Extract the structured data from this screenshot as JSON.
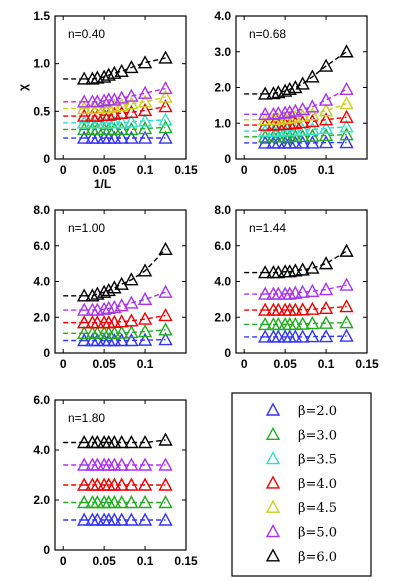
{
  "chart_data": {
    "type": "scatter",
    "x": [
      0.0256,
      0.0357,
      0.0417,
      0.05,
      0.0556,
      0.0625,
      0.0714,
      0.0833,
      0.1,
      0.125
    ],
    "legend": {
      "placement": "bottom-right",
      "entries": [
        {
          "beta": "β=2.0",
          "color": "#3333ff"
        },
        {
          "beta": "β=3.0",
          "color": "#22aa22"
        },
        {
          "beta": "β=3.5",
          "color": "#33ddcc"
        },
        {
          "beta": "β=4.0",
          "color": "#ee0000"
        },
        {
          "beta": "β=4.5",
          "color": "#cccc22"
        },
        {
          "beta": "β=5.0",
          "color": "#aa33ee"
        },
        {
          "beta": "β=6.0",
          "color": "#000000"
        }
      ]
    },
    "panels": [
      {
        "label": "n=0.40",
        "ylabel": "χ",
        "xlabel": "1/L",
        "xlim": [
          -0.01,
          0.15
        ],
        "ylim": [
          0,
          1.5
        ],
        "xticks": [
          "0",
          "0.05",
          "0.1",
          "0.15"
        ],
        "yticks": [
          "0",
          "0.5",
          "1.0",
          "1.5"
        ],
        "ytick_values": [
          0,
          0.5,
          1.0,
          1.5
        ],
        "series": [
          {
            "beta_index": 0,
            "y": [
              0.22,
              0.22,
              0.22,
              0.22,
              0.22,
              0.22,
              0.22,
              0.22,
              0.22,
              0.22
            ]
          },
          {
            "beta_index": 1,
            "y": [
              0.31,
              0.31,
              0.31,
              0.31,
              0.31,
              0.31,
              0.31,
              0.31,
              0.32,
              0.33
            ]
          },
          {
            "beta_index": 2,
            "y": [
              0.38,
              0.38,
              0.38,
              0.38,
              0.38,
              0.38,
              0.38,
              0.39,
              0.4,
              0.41
            ]
          },
          {
            "beta_index": 3,
            "y": [
              0.45,
              0.45,
              0.45,
              0.46,
              0.46,
              0.47,
              0.48,
              0.49,
              0.51,
              0.55
            ]
          },
          {
            "beta_index": 4,
            "y": [
              0.53,
              0.53,
              0.53,
              0.54,
              0.54,
              0.55,
              0.56,
              0.58,
              0.6,
              0.65
            ]
          },
          {
            "beta_index": 5,
            "y": [
              0.6,
              0.6,
              0.6,
              0.61,
              0.62,
              0.62,
              0.64,
              0.66,
              0.69,
              0.74
            ]
          },
          {
            "beta_index": 6,
            "y": [
              0.84,
              0.84,
              0.85,
              0.86,
              0.88,
              0.9,
              0.92,
              0.96,
              1.01,
              1.06
            ]
          }
        ]
      },
      {
        "label": "n=0.68",
        "ylabel": "",
        "xlabel": "",
        "xlim": [
          -0.01,
          0.15
        ],
        "ylim": [
          0,
          4.0
        ],
        "xticks": [
          "0",
          "0.05",
          "0.1",
          ""
        ],
        "yticks": [
          "0",
          "1.0",
          "2.0",
          "3.0",
          "4.0"
        ],
        "ytick_values": [
          0,
          1.0,
          2.0,
          3.0,
          4.0
        ],
        "series": [
          {
            "beta_index": 0,
            "y": [
              0.45,
              0.45,
              0.45,
              0.45,
              0.45,
              0.45,
              0.45,
              0.45,
              0.46,
              0.46
            ]
          },
          {
            "beta_index": 1,
            "y": [
              0.62,
              0.62,
              0.62,
              0.62,
              0.63,
              0.63,
              0.63,
              0.64,
              0.66,
              0.68
            ]
          },
          {
            "beta_index": 2,
            "y": [
              0.78,
              0.78,
              0.78,
              0.79,
              0.79,
              0.8,
              0.81,
              0.83,
              0.86,
              0.9
            ]
          },
          {
            "beta_index": 3,
            "y": [
              0.95,
              0.95,
              0.96,
              0.97,
              0.98,
              1.0,
              1.02,
              1.05,
              1.1,
              1.17
            ]
          },
          {
            "beta_index": 4,
            "y": [
              1.1,
              1.1,
              1.11,
              1.13,
              1.15,
              1.17,
              1.2,
              1.24,
              1.35,
              1.55
            ]
          },
          {
            "beta_index": 5,
            "y": [
              1.25,
              1.25,
              1.27,
              1.29,
              1.31,
              1.34,
              1.39,
              1.46,
              1.65,
              1.95
            ]
          },
          {
            "beta_index": 6,
            "y": [
              1.82,
              1.83,
              1.86,
              1.9,
              1.95,
              2.0,
              2.1,
              2.3,
              2.6,
              3.0
            ]
          }
        ]
      },
      {
        "label": "n=1.00",
        "ylabel": "",
        "xlabel": "",
        "xlim": [
          -0.01,
          0.15
        ],
        "ylim": [
          0,
          8.0
        ],
        "xticks": [
          "0",
          "0.05",
          "0.1",
          ""
        ],
        "yticks": [
          "0",
          "2.0",
          "4.0",
          "6.0",
          "8.0"
        ],
        "ytick_values": [
          0,
          2.0,
          4.0,
          6.0,
          8.0
        ],
        "series": [
          {
            "beta_index": 0,
            "y": [
              0.7,
              0.7,
              0.7,
              0.7,
              0.7,
              0.7,
              0.7,
              0.7,
              0.72,
              0.75
            ]
          },
          {
            "beta_index": 1,
            "y": [
              1.1,
              1.1,
              1.1,
              1.1,
              1.1,
              1.1,
              1.12,
              1.15,
              1.2,
              1.3
            ]
          },
          {
            "beta_index": 3,
            "y": [
              1.7,
              1.7,
              1.7,
              1.7,
              1.7,
              1.72,
              1.75,
              1.8,
              1.9,
              2.1
            ]
          },
          {
            "beta_index": 5,
            "y": [
              2.4,
              2.4,
              2.4,
              2.45,
              2.5,
              2.55,
              2.65,
              2.8,
              3.0,
              3.4
            ]
          },
          {
            "beta_index": 6,
            "y": [
              3.2,
              3.2,
              3.3,
              3.4,
              3.5,
              3.65,
              3.85,
              4.1,
              4.6,
              5.8
            ]
          }
        ]
      },
      {
        "label": "n=1.44",
        "ylabel": "",
        "xlabel": "",
        "xlim": [
          -0.01,
          0.15
        ],
        "ylim": [
          0,
          8.0
        ],
        "xticks": [
          "0",
          "0.05",
          "0.1",
          "0.15"
        ],
        "yticks": [
          "0",
          "2.0",
          "4.0",
          "6.0",
          "8.0"
        ],
        "ytick_values": [
          0,
          2.0,
          4.0,
          6.0,
          8.0
        ],
        "series": [
          {
            "beta_index": 0,
            "y": [
              0.9,
              0.9,
              0.9,
              0.9,
              0.9,
              0.9,
              0.9,
              0.92,
              0.92,
              0.95
            ]
          },
          {
            "beta_index": 1,
            "y": [
              1.6,
              1.6,
              1.6,
              1.6,
              1.6,
              1.6,
              1.62,
              1.65,
              1.67,
              1.7
            ]
          },
          {
            "beta_index": 3,
            "y": [
              2.4,
              2.4,
              2.4,
              2.4,
              2.4,
              2.4,
              2.42,
              2.45,
              2.5,
              2.6
            ]
          },
          {
            "beta_index": 5,
            "y": [
              3.3,
              3.3,
              3.3,
              3.3,
              3.3,
              3.35,
              3.4,
              3.45,
              3.55,
              3.8
            ]
          },
          {
            "beta_index": 6,
            "y": [
              4.5,
              4.5,
              4.5,
              4.55,
              4.55,
              4.6,
              4.65,
              4.75,
              5.0,
              5.7
            ]
          }
        ]
      },
      {
        "label": "n=1.80",
        "ylabel": "",
        "xlabel": "",
        "xlim": [
          -0.01,
          0.15
        ],
        "ylim": [
          0,
          6.0
        ],
        "xticks": [
          "0",
          "0.05",
          "0.1",
          "0.15"
        ],
        "yticks": [
          "0",
          "2.0",
          "4.0",
          "6.0"
        ],
        "ytick_values": [
          0,
          2.0,
          4.0,
          6.0
        ],
        "series": [
          {
            "beta_index": 0,
            "y": [
              1.2,
              1.2,
              1.2,
              1.2,
              1.2,
              1.2,
              1.2,
              1.2,
              1.2,
              1.2
            ]
          },
          {
            "beta_index": 1,
            "y": [
              1.9,
              1.9,
              1.9,
              1.9,
              1.9,
              1.9,
              1.9,
              1.9,
              1.9,
              1.9
            ]
          },
          {
            "beta_index": 3,
            "y": [
              2.6,
              2.6,
              2.6,
              2.6,
              2.6,
              2.6,
              2.6,
              2.6,
              2.6,
              2.6
            ]
          },
          {
            "beta_index": 5,
            "y": [
              3.4,
              3.4,
              3.4,
              3.4,
              3.4,
              3.4,
              3.4,
              3.4,
              3.4,
              3.4
            ]
          },
          {
            "beta_index": 6,
            "y": [
              4.3,
              4.3,
              4.3,
              4.3,
              4.3,
              4.3,
              4.3,
              4.3,
              4.3,
              4.4
            ]
          }
        ]
      }
    ]
  }
}
